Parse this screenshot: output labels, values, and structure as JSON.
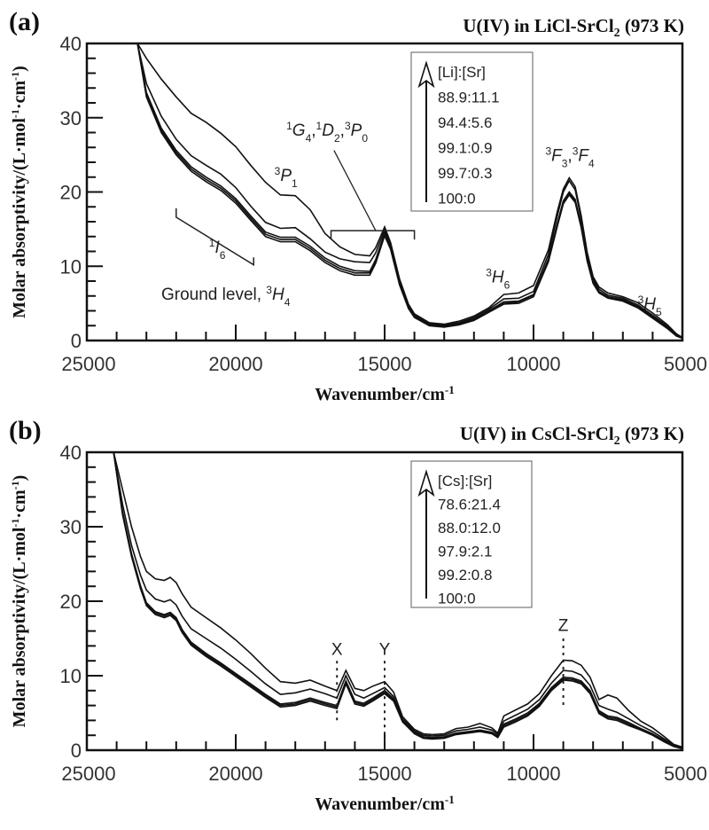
{
  "chart_data": [
    {
      "type": "line",
      "panel_label": "(a)",
      "title": "U(IV) in LiCl-SrCl2 (973 K)",
      "title_parts": {
        "main": "U(IV) in LiCl-SrCl",
        "sub": "2",
        "tail": " (973 K)"
      },
      "xlabel": "Wavenumber/cm-1",
      "xlabel_parts": {
        "main": "Wavenumber/cm",
        "sup": "-1"
      },
      "ylabel": "Molar absorptivity/(L·mol-1·cm-1)",
      "ylabel_parts": [
        "Molar absorptivity/(L·mol",
        "-1",
        "·cm",
        "-1",
        ")"
      ],
      "xlim": [
        25000,
        5000
      ],
      "ylim": [
        0,
        40
      ],
      "x_ticks": [
        25000,
        20000,
        15000,
        10000,
        5000
      ],
      "x_tick_labels": [
        "25000",
        "20000",
        "15000",
        "10000",
        "5000"
      ],
      "y_ticks": [
        0,
        10,
        20,
        30,
        40
      ],
      "y_tick_labels": [
        "0",
        "10",
        "20",
        "30",
        "40"
      ],
      "grid": false,
      "legend": {
        "placement": "top-center",
        "header": "[Li]:[Sr]",
        "entries": [
          "88.9:11.1",
          "94.4:5.6",
          "99.1:0.9",
          "99.7:0.3",
          "100:0"
        ],
        "arrow": "increasing-upward"
      },
      "annotations": [
        {
          "text": "Ground level, ³H₄",
          "parts": [
            [
              "Ground level, ",
              ""
            ],
            [
              "3",
              "sup"
            ],
            [
              "H",
              "it"
            ],
            [
              "4",
              "sub"
            ]
          ],
          "x": 22500,
          "y": 5.5
        },
        {
          "text": "¹I₆",
          "parts": [
            [
              "1",
              "sup"
            ],
            [
              "I",
              "it"
            ],
            [
              "6",
              "sub"
            ]
          ],
          "x": 20900,
          "y": 11.8
        },
        {
          "text": "³P₁",
          "parts": [
            [
              "3",
              "sup"
            ],
            [
              "P",
              "it"
            ],
            [
              "1",
              "sub"
            ]
          ],
          "x": 18700,
          "y": 21.5
        },
        {
          "text": "¹G₄,¹D₂,³P₀",
          "parts": [
            [
              "1",
              "sup"
            ],
            [
              "G",
              "it"
            ],
            [
              "4",
              "sub"
            ],
            [
              ",",
              ""
            ],
            [
              "1",
              "sup"
            ],
            [
              "D",
              "it"
            ],
            [
              "2",
              "sub"
            ],
            [
              ",",
              ""
            ],
            [
              "3",
              "sup"
            ],
            [
              "P",
              "it"
            ],
            [
              "0",
              "sub"
            ]
          ],
          "x": 18300,
          "y": 27.6
        },
        {
          "text": "³H₆",
          "parts": [
            [
              "3",
              "sup"
            ],
            [
              "H",
              "it"
            ],
            [
              "6",
              "sub"
            ]
          ],
          "x": 11600,
          "y": 7.8
        },
        {
          "text": "³F₃,³F₄",
          "parts": [
            [
              "3",
              "sup"
            ],
            [
              "F",
              "it"
            ],
            [
              "3",
              "sub"
            ],
            [
              ",",
              ""
            ],
            [
              "3",
              "sup"
            ],
            [
              "F",
              "it"
            ],
            [
              "4",
              "sub"
            ]
          ],
          "x": 9600,
          "y": 24.2
        },
        {
          "text": "³H₅",
          "parts": [
            [
              "3",
              "sup"
            ],
            [
              "H",
              "it"
            ],
            [
              "5",
              "sub"
            ]
          ],
          "x": 6500,
          "y": 4.2
        }
      ],
      "x": [
        23300,
        23000,
        22500,
        22000,
        21500,
        21000,
        20500,
        20000,
        19500,
        19000,
        18500,
        18000,
        17500,
        17000,
        16500,
        16000,
        15500,
        15300,
        15000,
        14800,
        14500,
        14200,
        14000,
        13500,
        13000,
        12500,
        12000,
        11500,
        11000,
        10500,
        10000,
        9500,
        9200,
        9000,
        8800,
        8600,
        8400,
        8200,
        8000,
        7800,
        7500,
        7000,
        6500,
        6000,
        5500,
        5200,
        5000
      ],
      "series": [
        {
          "name": "88.9:11.1",
          "values": [
            40,
            38.0,
            35.2,
            32.8,
            30.6,
            29.4,
            27.9,
            26.1,
            23.6,
            21.3,
            19.6,
            19.5,
            17.6,
            14.4,
            12.6,
            11.6,
            11.4,
            12.5,
            15.3,
            13.2,
            8.3,
            4.9,
            3.6,
            2.4,
            2.2,
            2.6,
            3.3,
            4.4,
            6.2,
            6.4,
            7.4,
            12.2,
            17.4,
            20.4,
            21.9,
            20.7,
            16.8,
            11.9,
            8.6,
            7.2,
            6.4,
            5.9,
            5.1,
            3.7,
            2.1,
            0.9,
            0.4
          ]
        },
        {
          "name": "94.4:5.6",
          "values": [
            40,
            34.6,
            30.2,
            27.1,
            24.9,
            23.6,
            22.4,
            20.6,
            18.1,
            15.9,
            15.1,
            15.2,
            13.7,
            11.9,
            11.0,
            10.6,
            10.5,
            11.8,
            14.9,
            12.9,
            8.0,
            4.7,
            3.5,
            2.3,
            2.1,
            2.4,
            3.1,
            4.2,
            5.6,
            5.7,
            6.6,
            11.6,
            16.8,
            20.0,
            21.5,
            20.3,
            16.4,
            11.5,
            8.3,
            6.9,
            6.1,
            5.7,
            4.8,
            3.4,
            1.9,
            0.8,
            0.4
          ]
        },
        {
          "name": "99.1:0.9",
          "values": [
            40,
            33.4,
            28.6,
            25.6,
            23.4,
            22.0,
            20.8,
            19.1,
            16.8,
            14.6,
            13.9,
            13.9,
            12.7,
            11.1,
            10.0,
            9.4,
            9.3,
            10.9,
            14.5,
            12.6,
            7.8,
            4.5,
            3.3,
            2.2,
            2.0,
            2.3,
            2.9,
            4.0,
            5.2,
            5.3,
            6.2,
            11.0,
            15.8,
            18.8,
            20.0,
            19.0,
            15.6,
            11.0,
            8.0,
            6.6,
            5.9,
            5.5,
            4.6,
            3.2,
            1.8,
            0.8,
            0.4
          ]
        },
        {
          "name": "99.7:0.3",
          "values": [
            40,
            33.1,
            28.3,
            25.3,
            23.1,
            21.7,
            20.5,
            18.8,
            16.5,
            14.3,
            13.6,
            13.6,
            12.4,
            10.8,
            9.7,
            9.1,
            9.1,
            10.7,
            14.3,
            12.5,
            7.7,
            4.4,
            3.2,
            2.1,
            1.9,
            2.2,
            2.8,
            3.9,
            5.0,
            5.2,
            6.1,
            10.8,
            15.6,
            18.6,
            19.8,
            18.8,
            15.4,
            10.9,
            7.9,
            6.5,
            5.8,
            5.4,
            4.5,
            3.1,
            1.7,
            0.7,
            0.3
          ]
        },
        {
          "name": "100:0",
          "values": [
            40,
            32.8,
            28.0,
            25.0,
            22.8,
            21.4,
            20.2,
            18.5,
            16.2,
            14.0,
            13.3,
            13.3,
            12.1,
            10.5,
            9.4,
            8.8,
            8.8,
            10.4,
            14.1,
            12.3,
            7.5,
            4.3,
            3.1,
            2.0,
            1.8,
            2.1,
            2.7,
            3.8,
            4.9,
            5.0,
            5.9,
            10.6,
            15.4,
            18.4,
            19.6,
            18.6,
            15.2,
            10.7,
            7.7,
            6.4,
            5.7,
            5.3,
            4.4,
            3.0,
            1.6,
            0.6,
            0.3
          ]
        }
      ]
    },
    {
      "type": "line",
      "panel_label": "(b)",
      "title": "U(IV) in CsCl-SrCl2 (973 K)",
      "title_parts": {
        "main": "U(IV) in CsCl-SrCl",
        "sub": "2",
        "tail": " (973 K)"
      },
      "xlabel": "Wavenumber/cm-1",
      "xlabel_parts": {
        "main": "Wavenumber/cm",
        "sup": "-1"
      },
      "ylabel": "Molar absorptivity/(L·mol-1·cm-1)",
      "ylabel_parts": [
        "Molar absorptivity/(L·mol",
        "-1",
        "·cm",
        "-1",
        ")"
      ],
      "xlim": [
        25000,
        5000
      ],
      "ylim": [
        0,
        40
      ],
      "x_ticks": [
        25000,
        20000,
        15000,
        10000,
        5000
      ],
      "x_tick_labels": [
        "25000",
        "20000",
        "15000",
        "10000",
        "5000"
      ],
      "y_ticks": [
        0,
        10,
        20,
        30,
        40
      ],
      "y_tick_labels": [
        "0",
        "10",
        "20",
        "30",
        "40"
      ],
      "grid": false,
      "legend": {
        "placement": "top-center",
        "header": "[Cs]:[Sr]",
        "entries": [
          "78.6:21.4",
          "88.0:12.0",
          "97.9:2.1",
          "99.2:0.8",
          "100:0"
        ],
        "arrow": "increasing-upward"
      },
      "annotations": [
        {
          "text": "X",
          "x": 16600,
          "y": 12.8,
          "marker_from": 4.0,
          "marker_to": 12.0
        },
        {
          "text": "Y",
          "x": 15000,
          "y": 12.8,
          "marker_from": 0.0,
          "marker_to": 12.0
        },
        {
          "text": "Z",
          "x": 9000,
          "y": 16.0,
          "marker_from": 6.0,
          "marker_to": 15.0
        }
      ],
      "x": [
        24100,
        23800,
        23500,
        23200,
        23000,
        22700,
        22400,
        22200,
        22000,
        21800,
        21500,
        21000,
        20500,
        20000,
        19500,
        19000,
        18500,
        18000,
        17500,
        17000,
        16600,
        16300,
        16000,
        15700,
        15400,
        15000,
        14700,
        14400,
        14000,
        13700,
        13400,
        13000,
        12600,
        12200,
        11800,
        11400,
        11200,
        11000,
        10600,
        10200,
        9800,
        9400,
        9000,
        8700,
        8400,
        8100,
        7800,
        7500,
        7200,
        6800,
        6400,
        6000,
        5600,
        5300,
        5000
      ],
      "series": [
        {
          "name": "78.6:21.4",
          "values": [
            40,
            35.0,
            30.0,
            26.0,
            24.0,
            23.0,
            22.8,
            23.2,
            22.5,
            21.0,
            19.2,
            17.8,
            16.4,
            14.8,
            13.0,
            11.0,
            9.2,
            9.0,
            9.4,
            8.6,
            8.0,
            10.7,
            8.3,
            8.0,
            8.6,
            9.2,
            7.8,
            4.5,
            2.8,
            2.2,
            2.1,
            2.2,
            2.9,
            3.1,
            3.6,
            3.0,
            2.3,
            4.6,
            5.4,
            6.2,
            7.6,
            10.0,
            12.1,
            12.0,
            11.4,
            9.8,
            6.8,
            7.4,
            7.0,
            5.3,
            3.9,
            3.0,
            1.8,
            0.8,
            0.4
          ]
        },
        {
          "name": "88.0:12.0",
          "values": [
            40,
            33.0,
            27.5,
            23.5,
            21.5,
            20.3,
            19.9,
            20.2,
            19.5,
            18.0,
            16.3,
            15.0,
            13.7,
            12.2,
            10.6,
            8.9,
            7.5,
            7.7,
            8.2,
            7.6,
            7.0,
            10.0,
            7.5,
            7.0,
            7.6,
            8.4,
            7.2,
            4.2,
            2.6,
            2.0,
            1.9,
            2.0,
            2.6,
            2.8,
            3.1,
            2.7,
            2.1,
            3.9,
            4.7,
            5.5,
            6.8,
            9.0,
            10.7,
            10.6,
            10.1,
            8.7,
            6.0,
            5.5,
            5.1,
            4.2,
            3.3,
            2.5,
            1.5,
            0.7,
            0.3
          ]
        },
        {
          "name": "97.9:2.1",
          "values": [
            40,
            32.0,
            26.4,
            22.1,
            19.8,
            18.6,
            18.2,
            18.5,
            17.8,
            16.2,
            14.5,
            13.0,
            11.7,
            10.3,
            8.9,
            7.5,
            6.2,
            6.4,
            7.0,
            6.4,
            6.0,
            9.3,
            6.6,
            6.3,
            7.0,
            8.0,
            6.9,
            4.0,
            2.4,
            1.8,
            1.7,
            1.8,
            2.3,
            2.5,
            2.7,
            2.4,
            1.9,
            3.5,
            4.2,
            5.0,
            6.3,
            8.4,
            9.8,
            9.7,
            9.3,
            8.0,
            5.3,
            4.6,
            4.4,
            3.7,
            2.9,
            2.2,
            1.3,
            0.6,
            0.3
          ]
        },
        {
          "name": "99.2:0.8",
          "values": [
            40,
            31.8,
            26.2,
            21.9,
            19.6,
            18.4,
            18.0,
            18.3,
            17.6,
            16.0,
            14.3,
            12.8,
            11.5,
            10.1,
            8.7,
            7.3,
            6.0,
            6.2,
            6.8,
            6.2,
            5.8,
            9.1,
            6.4,
            6.1,
            6.8,
            7.8,
            6.8,
            3.9,
            2.3,
            1.7,
            1.6,
            1.7,
            2.2,
            2.4,
            2.6,
            2.3,
            1.8,
            3.3,
            4.0,
            4.8,
            6.1,
            8.2,
            9.6,
            9.5,
            9.1,
            7.8,
            5.1,
            4.4,
            4.2,
            3.5,
            2.8,
            2.1,
            1.2,
            0.6,
            0.3
          ]
        },
        {
          "name": "100:0",
          "values": [
            40,
            31.6,
            26.0,
            21.7,
            19.4,
            18.2,
            17.8,
            18.1,
            17.4,
            15.8,
            14.1,
            12.6,
            11.3,
            9.9,
            8.5,
            7.1,
            5.8,
            6.0,
            6.6,
            6.0,
            5.6,
            8.9,
            6.2,
            5.9,
            6.6,
            7.6,
            6.6,
            3.8,
            2.2,
            1.6,
            1.5,
            1.6,
            2.1,
            2.3,
            2.5,
            2.2,
            1.7,
            3.1,
            3.8,
            4.6,
            5.9,
            8.0,
            9.4,
            9.3,
            8.9,
            7.6,
            4.9,
            4.2,
            4.0,
            3.3,
            2.7,
            2.0,
            1.1,
            0.5,
            0.2
          ]
        }
      ]
    }
  ]
}
